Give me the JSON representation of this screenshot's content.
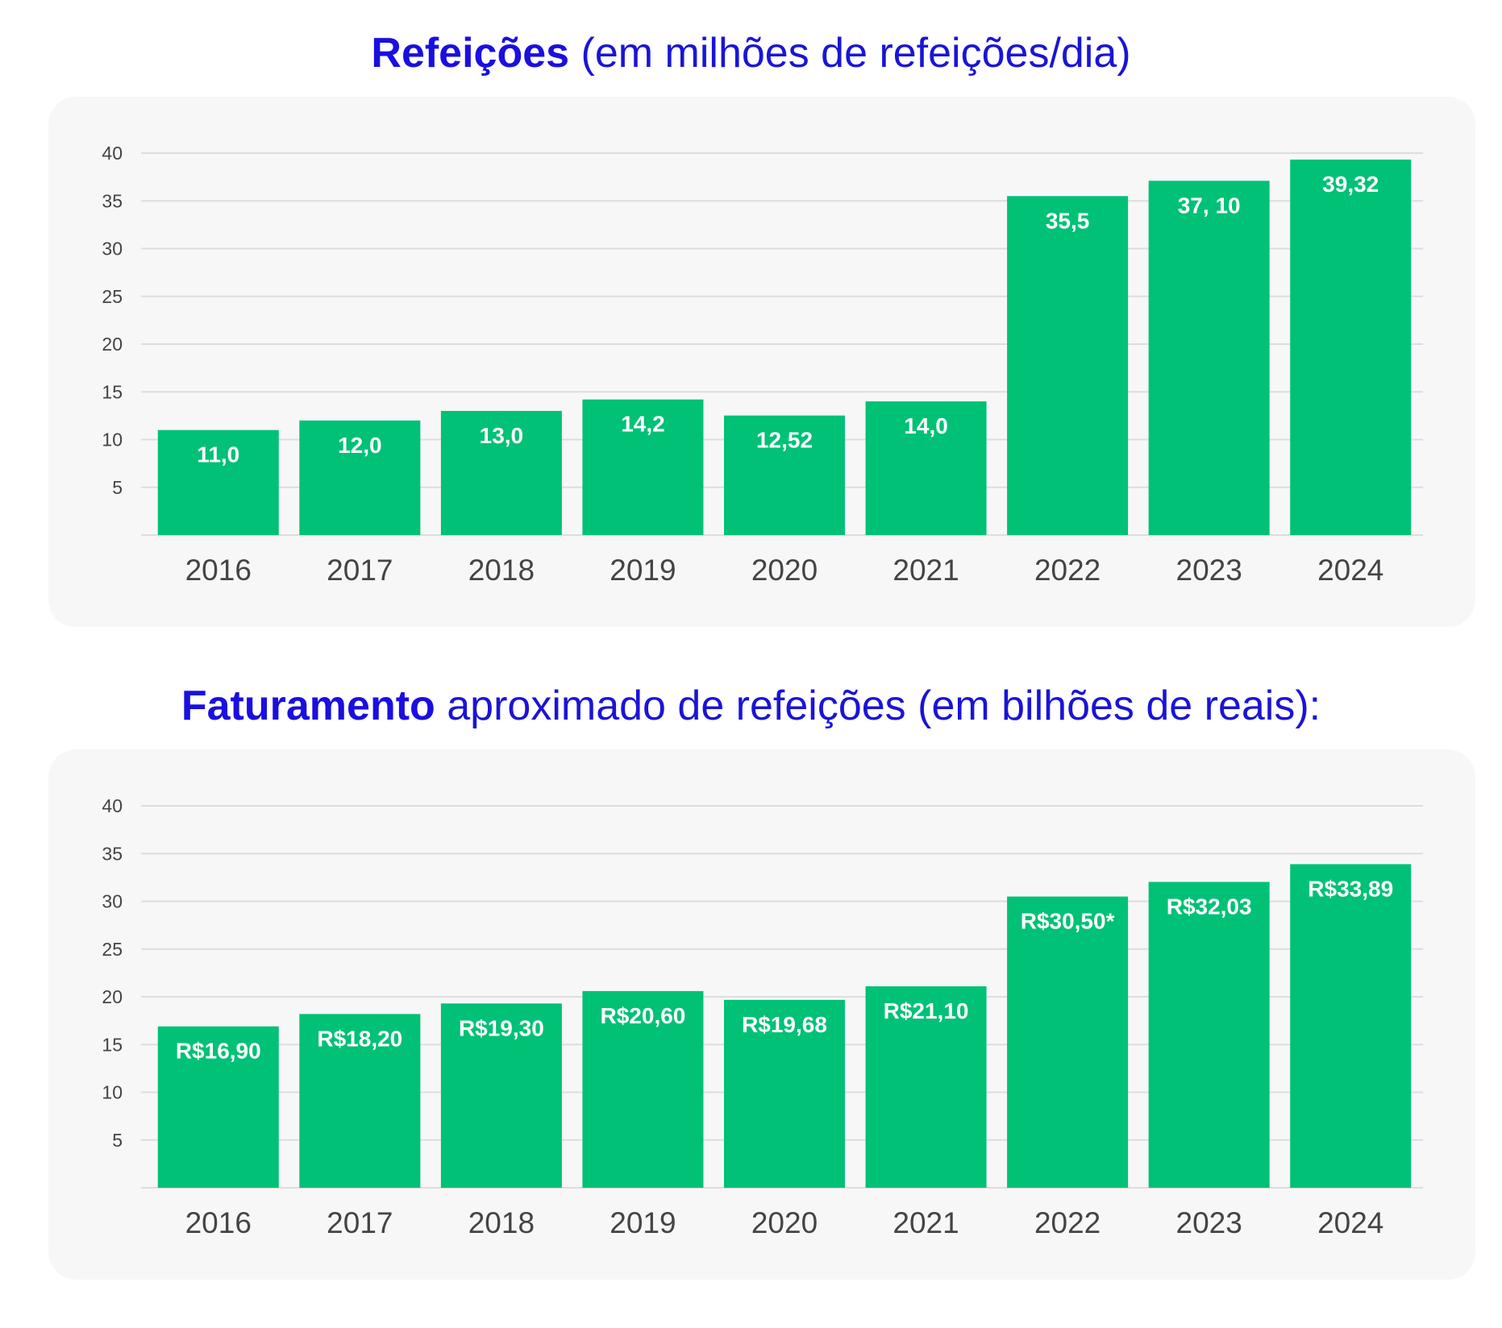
{
  "colors": {
    "bar": "#00c176",
    "grid": "#dddddd",
    "title": "#1a14d6",
    "card": "#f7f7f7"
  },
  "chart_data": [
    {
      "type": "bar",
      "title_bold": "Refeições",
      "title_rest": " (em milhões de refeições/dia)",
      "categories": [
        "2016",
        "2017",
        "2018",
        "2019",
        "2020",
        "2021",
        "2022",
        "2023",
        "2024"
      ],
      "values": [
        11.0,
        12.0,
        13.0,
        14.2,
        12.52,
        14.0,
        35.5,
        37.1,
        39.32
      ],
      "data_labels": [
        "11,0",
        "12,0",
        "13,0",
        "14,2",
        "12,52",
        "14,0",
        "35,5",
        "37, 10",
        "39,32"
      ],
      "yticks": [
        5,
        10,
        15,
        20,
        25,
        30,
        35,
        40
      ],
      "ylim": [
        0,
        40
      ],
      "grid": true
    },
    {
      "type": "bar",
      "title_bold": "Faturamento",
      "title_rest": " aproximado de refeições (em bilhões de reais):",
      "categories": [
        "2016",
        "2017",
        "2018",
        "2019",
        "2020",
        "2021",
        "2022",
        "2023",
        "2024"
      ],
      "values": [
        16.9,
        18.2,
        19.3,
        20.6,
        19.68,
        21.1,
        30.5,
        32.03,
        33.89
      ],
      "data_labels": [
        "R$16,90",
        "R$18,20",
        "R$19,30",
        "R$20,60",
        "R$19,68",
        "R$21,10",
        "R$30,50*",
        "R$32,03",
        "R$33,89"
      ],
      "yticks": [
        5,
        10,
        15,
        20,
        25,
        30,
        35,
        40
      ],
      "ylim": [
        0,
        40
      ],
      "grid": true
    }
  ]
}
